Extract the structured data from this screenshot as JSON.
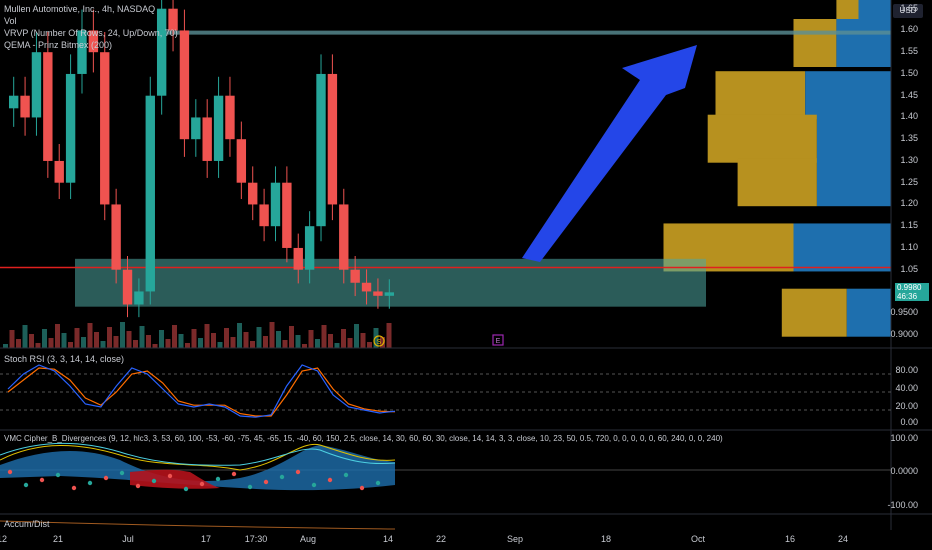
{
  "header": {
    "title": "Mullen Automotive, Inc., 4h, NASDAQ",
    "line2": "Vol",
    "line3": "VRVP (Number Of Rows, 24, Up/Down, 70)",
    "line4": "QEMA - Prinz Bitmex (200)"
  },
  "currency_button": "USD",
  "last_price": {
    "price": "0.9980",
    "countdown": "46:36"
  },
  "yaxis_labels": [
    "1.65",
    "1.60",
    "1.55",
    "1.50",
    "1.45",
    "1.40",
    "1.35",
    "1.30",
    "1.25",
    "1.20",
    "1.15",
    "1.10",
    "1.05",
    "0.9500",
    "0.9000"
  ],
  "stoch_rsi": {
    "title": "Stoch RSI (3, 3, 14, 14, close)",
    "ticks": [
      "80.00",
      "40.00",
      "20.00",
      "0.00"
    ]
  },
  "vmc": {
    "title": "VMC Cipher_B_Divergences (9, 12, hlc3, 3, 53, 60, 100, -53, -60, -75, 45, -65, 15, -40, 60, 150, 2.5, close, 14, 30, 60, 60, 30, close, 14, 14, 3, 3, close, 10, 23, 50, 0.5, 720, 0, 0, 0, 0, 0, 60, 240, 0, 0, 240)",
    "ticks": [
      "100.00",
      "0.0000",
      "-100.00"
    ]
  },
  "accum": {
    "title": "Accum/Dist"
  },
  "xaxis_labels": [
    "12",
    "21",
    "Jul",
    "17",
    "17:30",
    "Aug",
    "14",
    "22",
    "Sep",
    "18",
    "Oct",
    "16",
    "24"
  ],
  "markers": {
    "dividend": "S",
    "earnings": "E"
  },
  "colors": {
    "up": "#26a69a",
    "down": "#ef5350",
    "zone": "#4fa7a3",
    "arrow": "#2446e8",
    "vp_up": "#1e6fae",
    "vp_down": "#b7911f",
    "red_line": "#e0201e",
    "stoch_k": "#2962ff",
    "stoch_d": "#ff6d00"
  },
  "chart_data": {
    "type": "candlestick",
    "symbol": "Mullen Automotive, Inc.",
    "interval": "4h",
    "exchange": "NASDAQ",
    "ylim": [
      0.87,
      1.67
    ],
    "x_ticks": [
      "12",
      "21",
      "Jul",
      "17",
      "17:30",
      "Aug",
      "14",
      "22",
      "Sep",
      "18",
      "Oct",
      "16",
      "24"
    ],
    "candles_close_approx": [
      1.45,
      1.4,
      1.55,
      1.3,
      1.25,
      1.5,
      1.6,
      1.55,
      1.2,
      1.05,
      0.97,
      1.0,
      1.45,
      1.65,
      1.6,
      1.35,
      1.4,
      1.3,
      1.45,
      1.35,
      1.25,
      1.2,
      1.15,
      1.25,
      1.1,
      1.05,
      1.15,
      1.5,
      1.2,
      1.05,
      1.02,
      1.0,
      0.99,
      0.998
    ],
    "horizontal_lines": [
      {
        "name": "target",
        "value": 1.595
      },
      {
        "name": "red-level",
        "value": 1.055
      }
    ],
    "support_zone": {
      "from": 0.965,
      "to": 1.075
    },
    "volume_profile": {
      "rows": [
        {
          "price": 1.65,
          "up": 0.25,
          "down": 0.17
        },
        {
          "price": 1.57,
          "up": 0.42,
          "down": 0.33
        },
        {
          "price": 1.45,
          "up": 0.66,
          "down": 0.69
        },
        {
          "price": 1.35,
          "up": 0.57,
          "down": 0.84
        },
        {
          "price": 1.25,
          "up": 0.57,
          "down": 0.61
        },
        {
          "price": 1.1,
          "up": 0.75,
          "down": 1.0
        },
        {
          "price": 0.95,
          "up": 0.34,
          "down": 0.5
        }
      ]
    },
    "stoch_rsi": {
      "k": [
        55,
        80,
        95,
        85,
        60,
        30,
        25,
        60,
        90,
        80,
        55,
        30,
        25,
        30,
        25,
        10,
        8,
        12,
        60,
        95,
        85,
        45,
        25,
        20,
        15,
        18
      ],
      "d": [
        50,
        70,
        90,
        88,
        70,
        40,
        28,
        50,
        80,
        85,
        65,
        35,
        28,
        28,
        28,
        14,
        10,
        10,
        45,
        85,
        90,
        55,
        30,
        22,
        18,
        17
      ],
      "levels": [
        80,
        50,
        20
      ]
    }
  }
}
